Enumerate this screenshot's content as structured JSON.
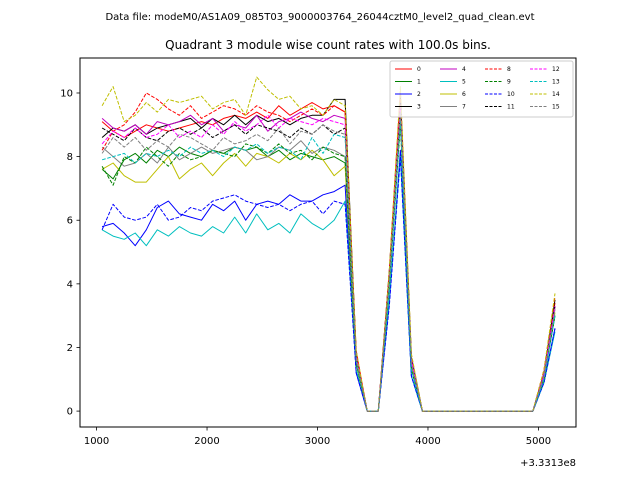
{
  "figure": {
    "suptitle": "Data file: modeM0/AS1A09_085T03_9000003764_26044cztM0_level2_quad_clean.evt"
  },
  "chart_data": {
    "type": "line",
    "title": "Quadrant 3 module wise count rates with 100.0s bins.",
    "xlabel": "",
    "ylabel": "",
    "x_offset_label": "+3.3313e8",
    "xlim": [
      850,
      5340
    ],
    "ylim": [
      -0.5,
      11.1
    ],
    "xticks": [
      1000,
      2000,
      3000,
      4000,
      5000
    ],
    "xtick_labels": [
      "1000",
      "2000",
      "3000",
      "4000",
      "5000"
    ],
    "yticks": [
      0,
      2,
      4,
      6,
      8,
      10
    ],
    "ytick_labels": [
      "0",
      "2",
      "4",
      "6",
      "8",
      "10"
    ],
    "grid": false,
    "legend_position": "top-right",
    "legend_columns": 4,
    "x": [
      1050,
      1150,
      1250,
      1350,
      1450,
      1550,
      1650,
      1750,
      1850,
      1950,
      2050,
      2150,
      2250,
      2350,
      2450,
      2550,
      2650,
      2750,
      2850,
      2950,
      3050,
      3150,
      3250,
      3350,
      3450,
      3550,
      3650,
      3750,
      3850,
      3950,
      4950,
      5050,
      5150
    ],
    "series": [
      {
        "name": "0",
        "color": "#ff0000",
        "dash": "solid",
        "values": [
          9.1,
          8.8,
          8.6,
          8.8,
          9.0,
          8.9,
          8.8,
          8.9,
          9.0,
          9.1,
          9.0,
          9.2,
          9.3,
          9.2,
          9.4,
          9.2,
          9.6,
          9.3,
          9.5,
          9.7,
          9.5,
          9.6,
          9.4,
          1.8,
          0.0,
          0.0,
          4.3,
          10.0,
          1.6,
          0.0,
          0.0,
          1.2,
          3.4
        ]
      },
      {
        "name": "1",
        "color": "#008000",
        "dash": "solid",
        "values": [
          7.6,
          7.3,
          7.9,
          8.1,
          7.8,
          8.2,
          8.0,
          8.3,
          8.1,
          8.0,
          8.2,
          8.1,
          8.3,
          8.2,
          8.3,
          8.0,
          8.2,
          7.9,
          8.1,
          8.0,
          7.9,
          8.0,
          7.8,
          1.5,
          0.0,
          0.0,
          4.0,
          9.4,
          1.4,
          0.0,
          0.0,
          1.1,
          3.0
        ]
      },
      {
        "name": "2",
        "color": "#0000ff",
        "dash": "solid",
        "values": [
          5.8,
          5.9,
          5.6,
          5.2,
          5.7,
          6.4,
          6.6,
          6.2,
          6.1,
          6.0,
          6.5,
          6.3,
          6.6,
          6.0,
          6.5,
          6.6,
          6.5,
          6.8,
          6.6,
          6.6,
          6.8,
          6.9,
          7.1,
          1.2,
          0.0,
          0.0,
          3.4,
          8.2,
          1.1,
          0.0,
          0.0,
          0.9,
          2.6
        ]
      },
      {
        "name": "3",
        "color": "#000000",
        "dash": "solid",
        "values": [
          8.6,
          8.9,
          8.8,
          9.0,
          8.7,
          8.9,
          9.0,
          9.1,
          9.2,
          8.9,
          9.2,
          9.0,
          9.3,
          9.0,
          9.3,
          9.1,
          9.2,
          9.0,
          9.2,
          9.3,
          9.3,
          9.8,
          9.8,
          1.8,
          0.0,
          0.0,
          4.4,
          9.9,
          1.7,
          0.0,
          0.0,
          1.2,
          3.5
        ]
      },
      {
        "name": "4",
        "color": "#c000c0",
        "dash": "solid",
        "values": [
          9.2,
          8.9,
          8.8,
          9.0,
          8.7,
          9.1,
          9.0,
          9.1,
          9.3,
          9.0,
          9.2,
          8.8,
          9.0,
          8.9,
          9.3,
          8.8,
          9.1,
          9.2,
          9.4,
          9.2,
          9.1,
          9.3,
          9.2,
          1.7,
          0.0,
          0.0,
          4.2,
          9.6,
          1.6,
          0.0,
          0.0,
          1.2,
          3.3
        ]
      },
      {
        "name": "5",
        "color": "#00bfbf",
        "dash": "solid",
        "values": [
          5.7,
          5.5,
          5.4,
          5.6,
          5.2,
          5.7,
          5.5,
          5.8,
          5.6,
          5.5,
          5.8,
          5.6,
          6.1,
          5.6,
          6.2,
          5.7,
          5.9,
          5.6,
          6.2,
          5.9,
          5.7,
          6.0,
          6.6,
          1.3,
          0.0,
          0.0,
          3.5,
          8.0,
          1.1,
          0.0,
          0.0,
          0.9,
          2.5
        ]
      },
      {
        "name": "6",
        "color": "#bfbf00",
        "dash": "solid",
        "values": [
          7.6,
          7.8,
          7.4,
          7.2,
          7.2,
          7.6,
          8.0,
          7.3,
          7.6,
          7.8,
          7.4,
          7.8,
          8.1,
          7.7,
          8.1,
          8.0,
          7.8,
          8.1,
          7.9,
          8.2,
          7.9,
          7.4,
          7.7,
          1.5,
          0.0,
          0.0,
          3.9,
          9.2,
          1.4,
          0.0,
          0.0,
          1.0,
          3.1
        ]
      },
      {
        "name": "7",
        "color": "#808080",
        "dash": "solid",
        "values": [
          8.3,
          8.0,
          7.7,
          7.8,
          8.1,
          7.8,
          8.3,
          7.9,
          8.1,
          8.3,
          8.1,
          8.2,
          8.3,
          8.2,
          7.9,
          8.0,
          8.3,
          8.2,
          8.5,
          8.1,
          8.3,
          8.2,
          8.0,
          1.6,
          0.0,
          0.0,
          4.0,
          9.3,
          1.5,
          0.0,
          0.0,
          1.1,
          3.2
        ]
      },
      {
        "name": "8",
        "color": "#ff0000",
        "dash": "dashed",
        "values": [
          8.2,
          8.8,
          9.0,
          9.4,
          10.0,
          9.8,
          9.5,
          9.3,
          9.6,
          9.2,
          9.4,
          9.6,
          9.5,
          9.3,
          9.6,
          9.4,
          9.3,
          9.1,
          9.3,
          9.5,
          9.3,
          9.6,
          9.4,
          1.9,
          0.0,
          0.0,
          4.4,
          10.0,
          1.7,
          0.0,
          0.0,
          1.3,
          3.6
        ]
      },
      {
        "name": "9",
        "color": "#008000",
        "dash": "dashed",
        "values": [
          7.7,
          7.1,
          8.0,
          7.8,
          8.3,
          8.0,
          7.7,
          8.1,
          7.9,
          8.0,
          8.2,
          8.1,
          8.0,
          8.4,
          8.3,
          8.1,
          8.4,
          8.1,
          8.2,
          7.9,
          8.3,
          8.1,
          8.0,
          1.5,
          0.0,
          0.0,
          3.9,
          9.0,
          1.3,
          0.0,
          0.0,
          1.0,
          3.0
        ]
      },
      {
        "name": "10",
        "color": "#0000ff",
        "dash": "dashed",
        "values": [
          5.7,
          6.5,
          6.1,
          6.0,
          6.1,
          6.5,
          6.0,
          6.1,
          6.4,
          6.3,
          6.6,
          6.7,
          6.8,
          6.6,
          6.5,
          6.4,
          6.5,
          6.3,
          6.5,
          6.6,
          6.2,
          6.6,
          6.5,
          1.2,
          0.0,
          0.0,
          3.3,
          8.0,
          1.1,
          0.0,
          0.0,
          0.9,
          2.6
        ]
      },
      {
        "name": "11",
        "color": "#000000",
        "dash": "dashed",
        "values": [
          8.9,
          8.7,
          8.5,
          8.9,
          8.6,
          8.5,
          8.8,
          8.9,
          8.7,
          8.9,
          8.6,
          8.8,
          9.0,
          8.7,
          9.0,
          8.9,
          8.8,
          8.6,
          8.9,
          8.7,
          9.0,
          8.7,
          8.9,
          1.7,
          0.0,
          0.0,
          4.2,
          9.5,
          1.5,
          0.0,
          0.0,
          1.1,
          3.3
        ]
      },
      {
        "name": "12",
        "color": "#ff00ff",
        "dash": "dashed",
        "values": [
          8.4,
          8.8,
          8.6,
          8.9,
          8.6,
          8.7,
          9.0,
          8.6,
          8.8,
          8.6,
          9.0,
          8.7,
          9.1,
          8.8,
          9.0,
          9.3,
          8.9,
          9.2,
          9.1,
          9.0,
          9.2,
          9.1,
          9.0,
          1.7,
          0.0,
          0.0,
          4.2,
          9.6,
          1.6,
          0.0,
          0.0,
          1.1,
          3.3
        ]
      },
      {
        "name": "13",
        "color": "#00bfbf",
        "dash": "dashed",
        "values": [
          7.9,
          8.0,
          8.1,
          7.8,
          8.1,
          8.0,
          8.2,
          8.0,
          8.3,
          8.1,
          8.2,
          8.0,
          8.3,
          8.2,
          8.4,
          8.1,
          8.3,
          8.2,
          7.9,
          8.6,
          8.1,
          8.7,
          8.6,
          1.6,
          0.0,
          0.0,
          3.9,
          9.1,
          1.3,
          0.0,
          0.0,
          1.0,
          3.0
        ]
      },
      {
        "name": "14",
        "color": "#bfbf00",
        "dash": "dashed",
        "values": [
          9.6,
          10.2,
          9.1,
          9.3,
          9.7,
          9.4,
          9.8,
          9.7,
          9.8,
          9.9,
          9.5,
          9.7,
          9.8,
          9.3,
          10.5,
          10.1,
          9.8,
          9.9,
          9.5,
          9.6,
          9.3,
          9.8,
          9.6,
          1.9,
          0.0,
          0.0,
          4.4,
          10.2,
          1.8,
          0.0,
          0.0,
          1.3,
          3.7
        ]
      },
      {
        "name": "15",
        "color": "#808080",
        "dash": "dashed",
        "values": [
          8.1,
          8.6,
          8.3,
          8.6,
          8.2,
          8.5,
          8.3,
          8.7,
          8.6,
          8.4,
          8.2,
          8.6,
          8.4,
          8.5,
          8.7,
          8.5,
          8.9,
          8.4,
          8.8,
          8.7,
          9.0,
          8.8,
          8.7,
          1.6,
          0.0,
          0.0,
          4.1,
          9.4,
          1.5,
          0.0,
          0.0,
          1.1,
          3.2
        ]
      }
    ]
  }
}
